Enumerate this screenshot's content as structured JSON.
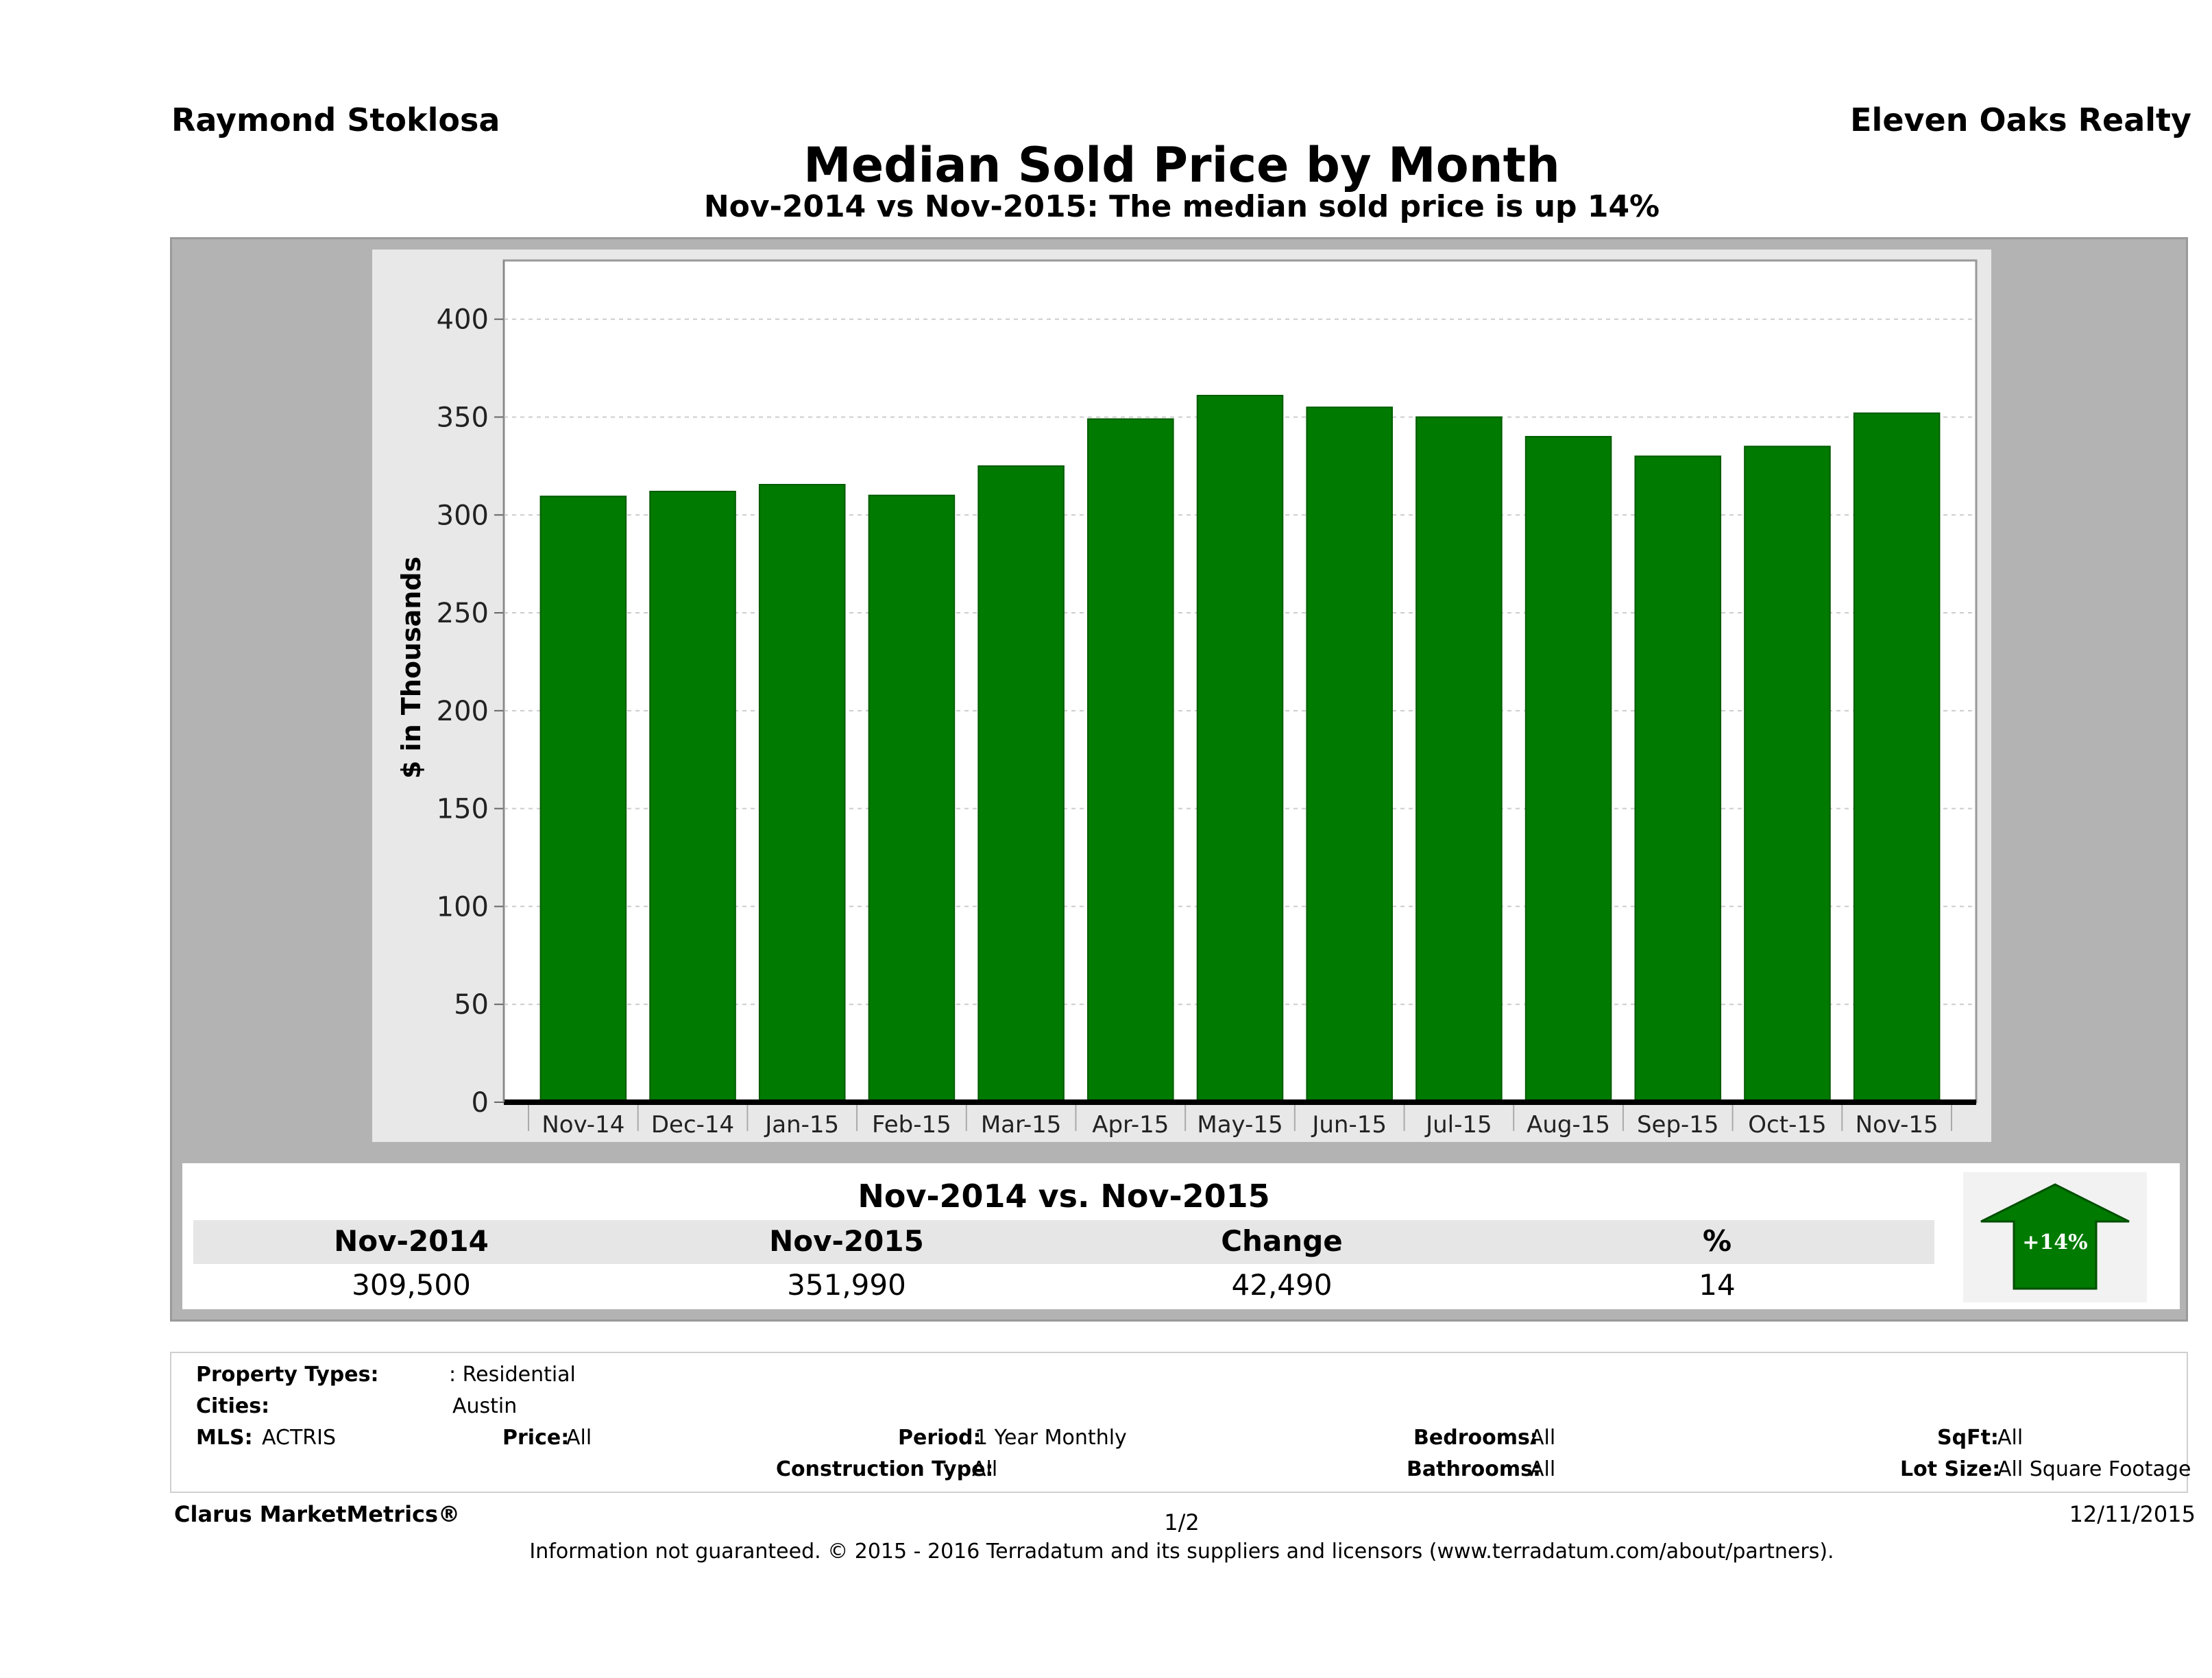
{
  "header": {
    "agent_name": "Raymond Stoklosa",
    "brokerage": "Eleven Oaks Realty",
    "title": "Median Sold Price by Month",
    "subtitle": "Nov-2014 vs Nov-2015: The median sold price is up 14%"
  },
  "chart_data": {
    "type": "bar",
    "categories": [
      "Nov-14",
      "Dec-14",
      "Jan-15",
      "Feb-15",
      "Mar-15",
      "Apr-15",
      "May-15",
      "Jun-15",
      "Jul-15",
      "Aug-15",
      "Sep-15",
      "Oct-15",
      "Nov-15"
    ],
    "values": [
      309.5,
      312,
      315.5,
      310,
      325,
      349,
      361,
      355,
      350,
      340,
      330,
      335,
      352
    ],
    "ylabel": "$ in Thousands",
    "xlabel": "",
    "ylim": [
      0,
      430
    ],
    "yticks": [
      0,
      50,
      100,
      150,
      200,
      250,
      300,
      350,
      400
    ],
    "grid": true,
    "colors": {
      "bar": "#007a00",
      "bar_edge": "#005c00",
      "plot_bg": "#ffffff",
      "grid": "#cccccc"
    }
  },
  "summary": {
    "title": "Nov-2014 vs. Nov-2015",
    "headers": [
      "Nov-2014",
      "Nov-2015",
      "Change",
      "%"
    ],
    "values": [
      "309,500",
      "351,990",
      "42,490",
      "14"
    ],
    "arrow_label": "+14%",
    "arrow_color": "#007a00"
  },
  "filters": {
    "property_types_label": "Property Types:",
    "property_types_value": ": Residential",
    "cities_label": "Cities:",
    "cities_value": "Austin",
    "mls_label": "MLS:",
    "mls_value": "ACTRIS",
    "price_label": "Price:",
    "price_value": "All",
    "period_label": "Period:",
    "period_value": "1 Year Monthly",
    "construction_label": "Construction Type:",
    "construction_value": "All",
    "bedrooms_label": "Bedrooms:",
    "bedrooms_value": "All",
    "bathrooms_label": "Bathrooms:",
    "bathrooms_value": "All",
    "sqft_label": "SqFt:",
    "sqft_value": "All",
    "lot_label": "Lot Size:",
    "lot_value": "All Square Footage"
  },
  "footer": {
    "brand": "Clarus MarketMetrics®",
    "page": "1/2",
    "date": "12/11/2015",
    "disclaimer": "Information not guaranteed. © 2015 - 2016 Terradatum and its suppliers and licensors (www.terradatum.com/about/partners)."
  }
}
